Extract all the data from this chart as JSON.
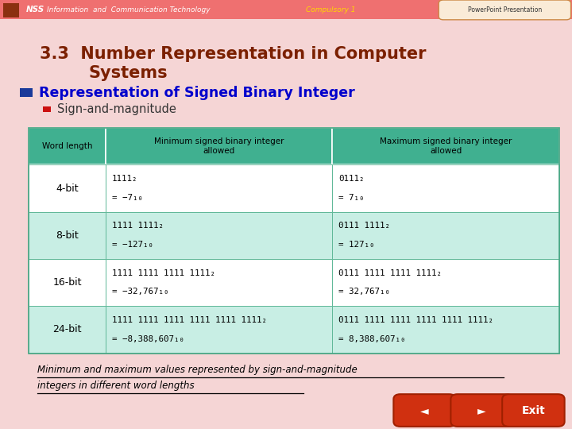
{
  "title_line1": "3.3  Number Representation in Computer",
  "title_line2": "Systems",
  "title_color": "#7B2000",
  "slide_bg": "#F5D5D5",
  "bullet1": "Representation of Signed Binary Integer",
  "bullet1_color": "#0000CC",
  "bullet2": "Sign-and-magnitude",
  "bullet2_color": "#333333",
  "table_header_bg": "#40B090",
  "table_row_bg_alt": "#C8EEE4",
  "table_row_bg_white": "#FFFFFF",
  "col_headers": [
    "Word length",
    "Minimum signed binary integer\nallowed",
    "Maximum signed binary integer\nallowed"
  ],
  "rows": [
    {
      "word": "4-bit",
      "min_line1": "1111₂",
      "min_line2": "= −7₁₀",
      "max_line1": "0111₂",
      "max_line2": "= 7₁₀"
    },
    {
      "word": "8-bit",
      "min_line1": "1111 1111₂",
      "min_line2": "= −127₁₀",
      "max_line1": "0111 1111₂",
      "max_line2": "= 127₁₀"
    },
    {
      "word": "16-bit",
      "min_line1": "1111 1111 1111 1111₂",
      "min_line2": "= −32,767₁₀",
      "max_line1": "0111 1111 1111 1111₂",
      "max_line2": "= 32,767₁₀"
    },
    {
      "word": "24-bit",
      "min_line1": "1111 1111 1111 1111 1111 1111₂",
      "min_line2": "= −8,388,607₁₀",
      "max_line1": "0111 1111 1111 1111 1111 1111₂",
      "max_line2": "= 8,388,607₁₀"
    }
  ],
  "caption_line1": "Minimum and maximum values represented by sign-and-magnitude",
  "caption_line2": "integers in different word lengths"
}
